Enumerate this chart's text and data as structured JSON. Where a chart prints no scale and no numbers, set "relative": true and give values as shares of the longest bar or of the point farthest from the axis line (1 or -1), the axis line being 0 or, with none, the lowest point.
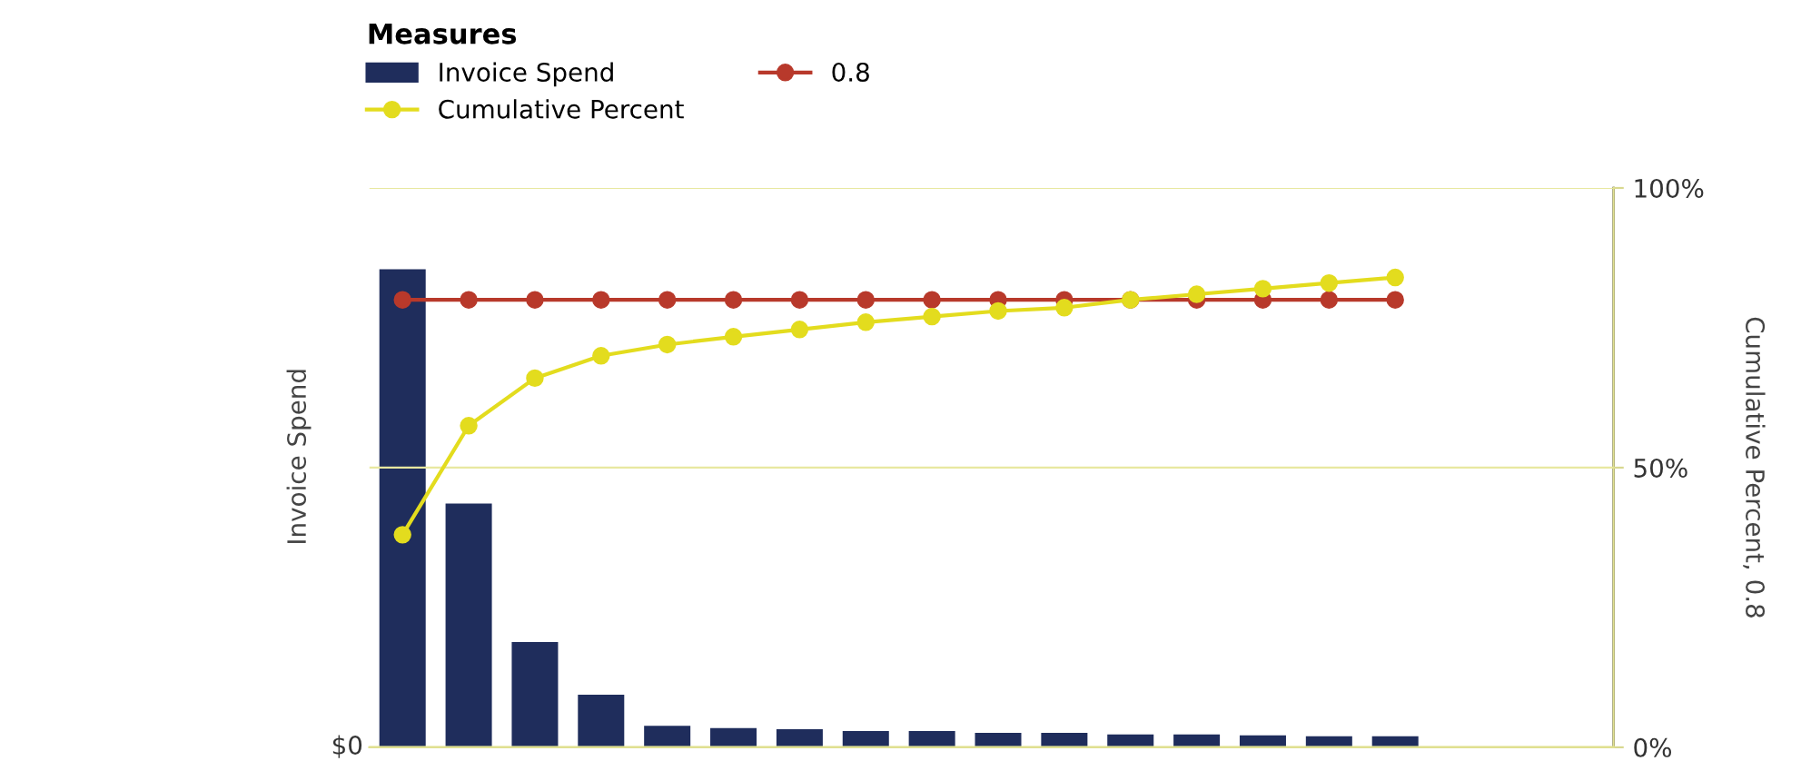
{
  "chart_data": {
    "type": "bar",
    "relative": true,
    "ylabel": "Invoice Spend",
    "y2label": "Cumulative Percent, 0.8",
    "legend_title": "Measures",
    "legend": "top left",
    "grid": "y",
    "marker": "circle",
    "categories": [
      null,
      null,
      null,
      null,
      null,
      null,
      null,
      null,
      null,
      null,
      null,
      null,
      null,
      null,
      null,
      null
    ],
    "annotations": [
      "$0"
    ],
    "y2lim": [
      0,
      1
    ],
    "y2ticks": [
      {
        "value": 0,
        "label": "0%"
      },
      {
        "value": 0.5,
        "label": "50%"
      },
      {
        "value": 1,
        "label": "100%"
      }
    ],
    "series": [
      {
        "name": "Invoice Spend",
        "color": "#1f2d5c",
        "values": [
          1,
          0.51,
          0.22,
          0.11,
          0.045,
          0.04,
          0.038,
          0.034,
          0.034,
          0.03,
          0.03,
          0.027,
          0.027,
          0.025,
          0.023,
          0.023
        ]
      },
      {
        "name": "Cumulative Percent",
        "type": "line",
        "axis": "y2",
        "color": "#e3dc1e",
        "values": [
          0.38,
          0.575,
          0.66,
          0.7,
          0.72,
          0.734,
          0.747,
          0.76,
          0.77,
          0.78,
          0.786,
          0.8,
          0.81,
          0.82,
          0.83,
          0.84
        ]
      },
      {
        "name": "0.8",
        "type": "line",
        "axis": "y2",
        "color": "#b8392b",
        "values": [
          0.8,
          0.8,
          0.8,
          0.8,
          0.8,
          0.8,
          0.8,
          0.8,
          0.8,
          0.8,
          0.8,
          0.8,
          0.8,
          0.8,
          0.8,
          0.8
        ]
      }
    ]
  }
}
